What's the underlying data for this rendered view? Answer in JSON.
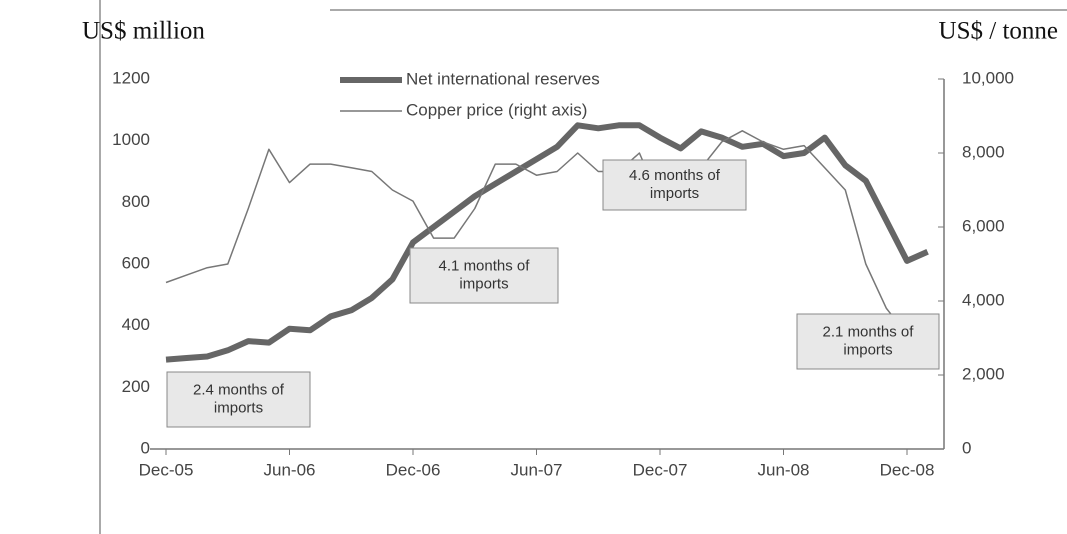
{
  "chart_data": {
    "type": "line",
    "y_label": "US$ million",
    "y2_label": "US$ / tonne",
    "categories": [
      "Dec-05",
      null,
      null,
      null,
      null,
      null,
      "Jun-06",
      null,
      null,
      null,
      null,
      null,
      "Dec-06",
      null,
      null,
      null,
      null,
      null,
      "Jun-07",
      null,
      null,
      null,
      null,
      null,
      "Dec-07",
      null,
      null,
      null,
      null,
      null,
      "Jun-08",
      null,
      null,
      null,
      null,
      null,
      "Dec-08",
      null
    ],
    "series": [
      {
        "name": "Net international reserves",
        "color": "#666666",
        "width": "thick",
        "values": [
          290,
          295,
          300,
          320,
          350,
          345,
          390,
          385,
          430,
          450,
          490,
          550,
          670,
          720,
          770,
          820,
          860,
          900,
          940,
          980,
          1050,
          1040,
          1050,
          1050,
          1010,
          975,
          1030,
          1010,
          980,
          990,
          950,
          960,
          1010,
          920,
          870,
          740,
          610,
          640
        ]
      },
      {
        "name": "Copper price (right axis)",
        "color": "#777777",
        "width": "thin",
        "axis": "y2",
        "values": [
          4500,
          4700,
          4900,
          5000,
          6500,
          8100,
          7200,
          7700,
          7700,
          7600,
          7500,
          7000,
          6700,
          5700,
          5700,
          6500,
          7700,
          7700,
          7400,
          7500,
          8000,
          7500,
          7500,
          8000,
          6700,
          7000,
          7600,
          8300,
          8600,
          8300,
          8100,
          8200,
          7600,
          7000,
          5000,
          3800,
          3100,
          3100
        ]
      }
    ],
    "ylim": [
      0,
      1200
    ],
    "yticks": [
      0,
      200,
      400,
      600,
      800,
      1000,
      1200
    ],
    "y2lim": [
      0,
      10000
    ],
    "y2ticks": [
      0,
      {
        "value": 2000,
        "label": "2,000"
      },
      {
        "value": 4000,
        "label": "4,000"
      },
      {
        "value": 6000,
        "label": "6,000"
      },
      {
        "value": 8000,
        "label": "8,000"
      },
      {
        "value": 10000,
        "label": "10,000"
      }
    ],
    "legend": "top",
    "annotations": [
      [
        "2.4 months of",
        "imports"
      ],
      [
        "4.1 months of",
        "imports"
      ],
      [
        "4.6 months of",
        "imports"
      ],
      [
        "2.1 months of",
        "imports"
      ]
    ]
  }
}
